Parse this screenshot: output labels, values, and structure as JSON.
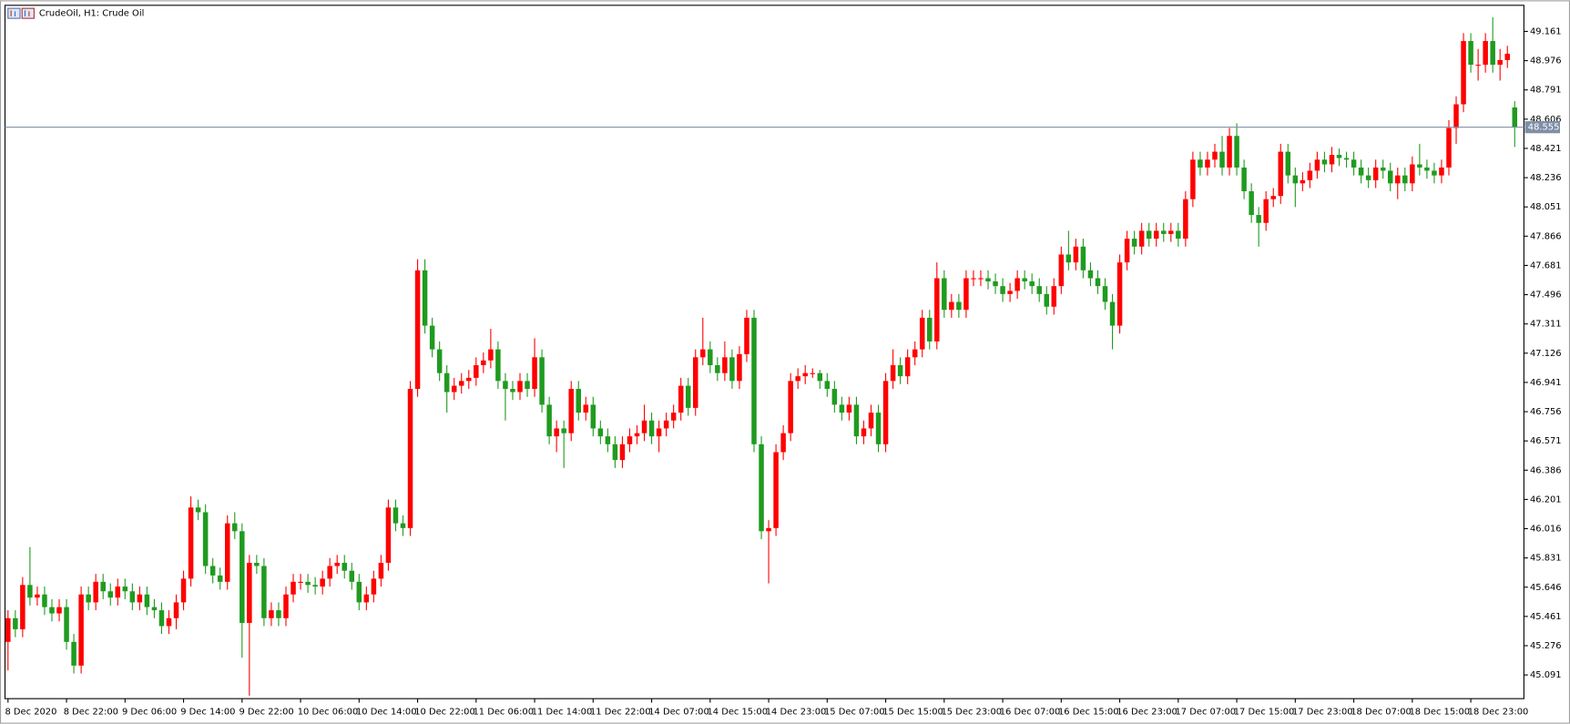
{
  "chart_data": {
    "type": "candlestick",
    "title": "CrudeOil, H1:  Crude Oil",
    "up_color": "#ff0000",
    "down_color": "#1f9b1f",
    "grid": false,
    "current_price": 48.555,
    "current_price_color": "#7f8fa6",
    "ylim": [
      44.941,
      49.326
    ],
    "yticks": [
      49.161,
      48.976,
      48.791,
      48.606,
      48.421,
      48.236,
      48.051,
      47.866,
      47.681,
      47.496,
      47.311,
      47.126,
      46.941,
      46.756,
      46.571,
      46.386,
      46.201,
      46.016,
      45.831,
      45.646,
      45.461,
      45.276,
      45.091
    ],
    "x_labels": [
      "8 Dec 2020",
      "8 Dec 22:00",
      "9 Dec 06:00",
      "9 Dec 14:00",
      "9 Dec 22:00",
      "10 Dec 06:00",
      "10 Dec 14:00",
      "10 Dec 22:00",
      "11 Dec 06:00",
      "11 Dec 14:00",
      "11 Dec 22:00",
      "14 Dec 07:00",
      "14 Dec 15:00",
      "14 Dec 23:00",
      "15 Dec 07:00",
      "15 Dec 15:00",
      "15 Dec 23:00",
      "16 Dec 07:00",
      "16 Dec 15:00",
      "16 Dec 23:00",
      "17 Dec 07:00",
      "17 Dec 15:00",
      "17 Dec 23:00",
      "18 Dec 07:00",
      "18 Dec 15:00",
      "18 Dec 23:00"
    ],
    "candles": [
      [
        45.3,
        45.5,
        45.12,
        45.45
      ],
      [
        45.45,
        45.5,
        45.33,
        45.38
      ],
      [
        45.38,
        45.71,
        45.33,
        45.66
      ],
      [
        45.66,
        45.9,
        45.53,
        45.58
      ],
      [
        45.58,
        45.65,
        45.53,
        45.6
      ],
      [
        45.6,
        45.65,
        45.47,
        45.52
      ],
      [
        45.52,
        45.57,
        45.43,
        45.48
      ],
      [
        45.48,
        45.57,
        45.43,
        45.52
      ],
      [
        45.52,
        45.57,
        45.25,
        45.3
      ],
      [
        45.3,
        45.35,
        45.1,
        45.15
      ],
      [
        45.15,
        45.65,
        45.1,
        45.6
      ],
      [
        45.6,
        45.65,
        45.5,
        45.55
      ],
      [
        45.55,
        45.73,
        45.5,
        45.68
      ],
      [
        45.68,
        45.73,
        45.57,
        45.62
      ],
      [
        45.62,
        45.67,
        45.53,
        45.58
      ],
      [
        45.58,
        45.7,
        45.53,
        45.65
      ],
      [
        45.65,
        45.7,
        45.57,
        45.62
      ],
      [
        45.62,
        45.67,
        45.5,
        45.55
      ],
      [
        45.55,
        45.65,
        45.5,
        45.6
      ],
      [
        45.6,
        45.65,
        45.47,
        45.52
      ],
      [
        45.52,
        45.57,
        45.45,
        45.5
      ],
      [
        45.5,
        45.55,
        45.35,
        45.4
      ],
      [
        45.4,
        45.5,
        45.35,
        45.45
      ],
      [
        45.45,
        45.6,
        45.38,
        45.55
      ],
      [
        45.55,
        45.75,
        45.5,
        45.7
      ],
      [
        45.7,
        46.22,
        45.65,
        46.15
      ],
      [
        46.15,
        46.2,
        46.07,
        46.12
      ],
      [
        46.12,
        46.17,
        45.73,
        45.78
      ],
      [
        45.78,
        45.83,
        45.67,
        45.72
      ],
      [
        45.72,
        45.77,
        45.63,
        45.68
      ],
      [
        45.68,
        46.1,
        45.63,
        46.05
      ],
      [
        46.05,
        46.12,
        45.95,
        46.0
      ],
      [
        46.0,
        46.05,
        45.2,
        45.42
      ],
      [
        45.42,
        45.85,
        44.96,
        45.8
      ],
      [
        45.8,
        45.85,
        45.73,
        45.78
      ],
      [
        45.78,
        45.83,
        45.4,
        45.45
      ],
      [
        45.45,
        45.55,
        45.4,
        45.5
      ],
      [
        45.5,
        45.55,
        45.4,
        45.45
      ],
      [
        45.45,
        45.65,
        45.4,
        45.6
      ],
      [
        45.6,
        45.73,
        45.55,
        45.68
      ],
      [
        45.68,
        45.73,
        45.63,
        45.68
      ],
      [
        45.68,
        45.73,
        45.61,
        45.66
      ],
      [
        45.66,
        45.71,
        45.6,
        45.65
      ],
      [
        45.65,
        45.75,
        45.6,
        45.7
      ],
      [
        45.7,
        45.83,
        45.65,
        45.78
      ],
      [
        45.78,
        45.85,
        45.73,
        45.8
      ],
      [
        45.8,
        45.85,
        45.7,
        45.75
      ],
      [
        45.75,
        45.8,
        45.63,
        45.68
      ],
      [
        45.68,
        45.73,
        45.5,
        45.55
      ],
      [
        45.55,
        45.65,
        45.5,
        45.6
      ],
      [
        45.6,
        45.75,
        45.55,
        45.7
      ],
      [
        45.7,
        45.85,
        45.65,
        45.8
      ],
      [
        45.8,
        46.2,
        45.75,
        46.15
      ],
      [
        46.15,
        46.2,
        46.0,
        46.05
      ],
      [
        46.05,
        46.1,
        45.97,
        46.02
      ],
      [
        46.02,
        46.95,
        45.97,
        46.9
      ],
      [
        46.9,
        47.72,
        46.85,
        47.65
      ],
      [
        47.65,
        47.72,
        47.25,
        47.3
      ],
      [
        47.3,
        47.35,
        47.1,
        47.15
      ],
      [
        47.15,
        47.2,
        46.95,
        47.0
      ],
      [
        47.0,
        47.05,
        46.75,
        46.88
      ],
      [
        46.88,
        46.97,
        46.83,
        46.92
      ],
      [
        46.92,
        47.0,
        46.87,
        46.95
      ],
      [
        46.95,
        47.02,
        46.9,
        46.97
      ],
      [
        46.97,
        47.1,
        46.92,
        47.05
      ],
      [
        47.05,
        47.13,
        47.0,
        47.08
      ],
      [
        47.08,
        47.28,
        47.03,
        47.15
      ],
      [
        47.15,
        47.2,
        46.9,
        46.95
      ],
      [
        46.95,
        47.0,
        46.7,
        46.9
      ],
      [
        46.9,
        46.95,
        46.83,
        46.88
      ],
      [
        46.88,
        47.0,
        46.83,
        46.95
      ],
      [
        46.95,
        47.0,
        46.85,
        46.9
      ],
      [
        46.9,
        47.22,
        46.85,
        47.1
      ],
      [
        47.1,
        47.15,
        46.75,
        46.8
      ],
      [
        46.8,
        46.85,
        46.55,
        46.6
      ],
      [
        46.6,
        46.7,
        46.5,
        46.65
      ],
      [
        46.65,
        46.7,
        46.4,
        46.62
      ],
      [
        46.62,
        46.95,
        46.57,
        46.9
      ],
      [
        46.9,
        46.95,
        46.7,
        46.75
      ],
      [
        46.75,
        46.85,
        46.7,
        46.8
      ],
      [
        46.8,
        46.85,
        46.6,
        46.65
      ],
      [
        46.65,
        46.7,
        46.55,
        46.6
      ],
      [
        46.6,
        46.65,
        46.5,
        46.55
      ],
      [
        46.55,
        46.6,
        46.4,
        46.45
      ],
      [
        46.45,
        46.6,
        46.4,
        46.55
      ],
      [
        46.55,
        46.65,
        46.5,
        46.6
      ],
      [
        46.6,
        46.67,
        46.55,
        46.62
      ],
      [
        46.62,
        46.8,
        46.57,
        46.7
      ],
      [
        46.7,
        46.75,
        46.55,
        46.6
      ],
      [
        46.6,
        46.7,
        46.5,
        46.65
      ],
      [
        46.65,
        46.75,
        46.6,
        46.7
      ],
      [
        46.7,
        46.8,
        46.65,
        46.75
      ],
      [
        46.75,
        46.97,
        46.7,
        46.92
      ],
      [
        46.92,
        46.97,
        46.73,
        46.78
      ],
      [
        46.78,
        47.15,
        46.73,
        47.1
      ],
      [
        47.1,
        47.35,
        47.05,
        47.15
      ],
      [
        47.15,
        47.2,
        47.0,
        47.05
      ],
      [
        47.05,
        47.1,
        46.95,
        47.0
      ],
      [
        47.0,
        47.2,
        46.95,
        47.1
      ],
      [
        47.1,
        47.15,
        46.9,
        46.95
      ],
      [
        46.95,
        47.17,
        46.9,
        47.12
      ],
      [
        47.12,
        47.4,
        47.07,
        47.35
      ],
      [
        47.35,
        47.4,
        46.5,
        46.55
      ],
      [
        46.55,
        46.6,
        45.95,
        46.0
      ],
      [
        46.0,
        46.07,
        45.67,
        46.02
      ],
      [
        46.02,
        46.55,
        45.97,
        46.5
      ],
      [
        46.5,
        46.67,
        46.45,
        46.62
      ],
      [
        46.62,
        47.0,
        46.57,
        46.95
      ],
      [
        46.95,
        47.03,
        46.9,
        46.98
      ],
      [
        46.98,
        47.05,
        46.93,
        47.0
      ],
      [
        47.0,
        47.03,
        46.97,
        47.0
      ],
      [
        47.0,
        47.02,
        46.9,
        46.95
      ],
      [
        46.95,
        47.0,
        46.85,
        46.9
      ],
      [
        46.9,
        46.95,
        46.75,
        46.8
      ],
      [
        46.8,
        46.85,
        46.7,
        46.75
      ],
      [
        46.75,
        46.85,
        46.7,
        46.8
      ],
      [
        46.8,
        46.85,
        46.55,
        46.6
      ],
      [
        46.6,
        46.7,
        46.55,
        46.65
      ],
      [
        46.65,
        46.8,
        46.6,
        46.75
      ],
      [
        46.75,
        46.8,
        46.5,
        46.55
      ],
      [
        46.55,
        47.0,
        46.5,
        46.95
      ],
      [
        46.95,
        47.15,
        46.9,
        47.05
      ],
      [
        47.05,
        47.1,
        46.93,
        46.98
      ],
      [
        46.98,
        47.15,
        46.93,
        47.1
      ],
      [
        47.1,
        47.2,
        47.05,
        47.15
      ],
      [
        47.15,
        47.4,
        47.1,
        47.35
      ],
      [
        47.35,
        47.4,
        47.15,
        47.2
      ],
      [
        47.2,
        47.7,
        47.15,
        47.6
      ],
      [
        47.6,
        47.65,
        47.35,
        47.4
      ],
      [
        47.4,
        47.5,
        47.35,
        47.45
      ],
      [
        47.45,
        47.5,
        47.35,
        47.4
      ],
      [
        47.4,
        47.65,
        47.35,
        47.6
      ],
      [
        47.6,
        47.65,
        47.55,
        47.6
      ],
      [
        47.6,
        47.65,
        47.55,
        47.6
      ],
      [
        47.6,
        47.65,
        47.53,
        47.58
      ],
      [
        47.58,
        47.63,
        47.5,
        47.55
      ],
      [
        47.55,
        47.6,
        47.45,
        47.5
      ],
      [
        47.5,
        47.57,
        47.45,
        47.52
      ],
      [
        47.52,
        47.65,
        47.47,
        47.6
      ],
      [
        47.6,
        47.65,
        47.53,
        47.58
      ],
      [
        47.58,
        47.63,
        47.5,
        47.55
      ],
      [
        47.55,
        47.6,
        47.45,
        47.5
      ],
      [
        47.5,
        47.55,
        47.37,
        47.42
      ],
      [
        47.42,
        47.6,
        47.37,
        47.55
      ],
      [
        47.55,
        47.8,
        47.5,
        47.75
      ],
      [
        47.75,
        47.9,
        47.65,
        47.7
      ],
      [
        47.7,
        47.85,
        47.65,
        47.8
      ],
      [
        47.8,
        47.85,
        47.6,
        47.65
      ],
      [
        47.65,
        47.7,
        47.55,
        47.6
      ],
      [
        47.6,
        47.65,
        47.5,
        47.55
      ],
      [
        47.55,
        47.6,
        47.4,
        47.45
      ],
      [
        47.45,
        47.5,
        47.15,
        47.3
      ],
      [
        47.3,
        47.75,
        47.25,
        47.7
      ],
      [
        47.7,
        47.9,
        47.65,
        47.85
      ],
      [
        47.85,
        47.9,
        47.75,
        47.8
      ],
      [
        47.8,
        47.95,
        47.75,
        47.9
      ],
      [
        47.9,
        47.95,
        47.8,
        47.85
      ],
      [
        47.85,
        47.95,
        47.8,
        47.9
      ],
      [
        47.9,
        47.95,
        47.83,
        47.88
      ],
      [
        47.88,
        47.95,
        47.83,
        47.9
      ],
      [
        47.9,
        47.95,
        47.8,
        47.85
      ],
      [
        47.85,
        48.15,
        47.8,
        48.1
      ],
      [
        48.1,
        48.4,
        48.05,
        48.35
      ],
      [
        48.35,
        48.4,
        48.25,
        48.3
      ],
      [
        48.3,
        48.4,
        48.25,
        48.35
      ],
      [
        48.35,
        48.45,
        48.3,
        48.4
      ],
      [
        48.4,
        48.5,
        48.25,
        48.3
      ],
      [
        48.3,
        48.55,
        48.25,
        48.5
      ],
      [
        48.5,
        48.58,
        48.25,
        48.3
      ],
      [
        48.3,
        48.35,
        48.1,
        48.15
      ],
      [
        48.15,
        48.2,
        47.95,
        48.0
      ],
      [
        48.0,
        48.05,
        47.8,
        47.95
      ],
      [
        47.95,
        48.15,
        47.9,
        48.1
      ],
      [
        48.1,
        48.17,
        48.05,
        48.12
      ],
      [
        48.12,
        48.45,
        48.07,
        48.4
      ],
      [
        48.4,
        48.45,
        48.2,
        48.25
      ],
      [
        48.25,
        48.3,
        48.05,
        48.2
      ],
      [
        48.2,
        48.27,
        48.15,
        48.22
      ],
      [
        48.22,
        48.33,
        48.17,
        48.28
      ],
      [
        48.28,
        48.4,
        48.23,
        48.35
      ],
      [
        48.35,
        48.4,
        48.27,
        48.32
      ],
      [
        48.32,
        48.43,
        48.27,
        48.38
      ],
      [
        48.38,
        48.42,
        48.31,
        48.36
      ],
      [
        48.36,
        48.4,
        48.3,
        48.35
      ],
      [
        48.35,
        48.4,
        48.25,
        48.3
      ],
      [
        48.3,
        48.35,
        48.2,
        48.25
      ],
      [
        48.25,
        48.3,
        48.17,
        48.22
      ],
      [
        48.22,
        48.35,
        48.17,
        48.3
      ],
      [
        48.3,
        48.35,
        48.23,
        48.28
      ],
      [
        48.28,
        48.33,
        48.15,
        48.2
      ],
      [
        48.2,
        48.3,
        48.1,
        48.25
      ],
      [
        48.25,
        48.3,
        48.15,
        48.2
      ],
      [
        48.2,
        48.37,
        48.15,
        48.32
      ],
      [
        48.32,
        48.45,
        48.25,
        48.3
      ],
      [
        48.3,
        48.35,
        48.23,
        48.28
      ],
      [
        48.28,
        48.33,
        48.2,
        48.25
      ],
      [
        48.25,
        48.35,
        48.2,
        48.3
      ],
      [
        48.3,
        48.6,
        48.25,
        48.55
      ],
      [
        48.55,
        48.75,
        48.45,
        48.7
      ],
      [
        48.7,
        49.15,
        48.65,
        49.1
      ],
      [
        49.1,
        49.15,
        48.9,
        48.95
      ],
      [
        48.95,
        49.05,
        48.85,
        48.95
      ],
      [
        48.95,
        49.15,
        48.9,
        49.1
      ],
      [
        49.1,
        49.25,
        48.9,
        48.95
      ],
      [
        48.95,
        49.05,
        48.85,
        48.98
      ],
      [
        48.98,
        49.07,
        48.93,
        49.02
      ],
      [
        48.68,
        48.72,
        48.43,
        48.555
      ]
    ]
  }
}
